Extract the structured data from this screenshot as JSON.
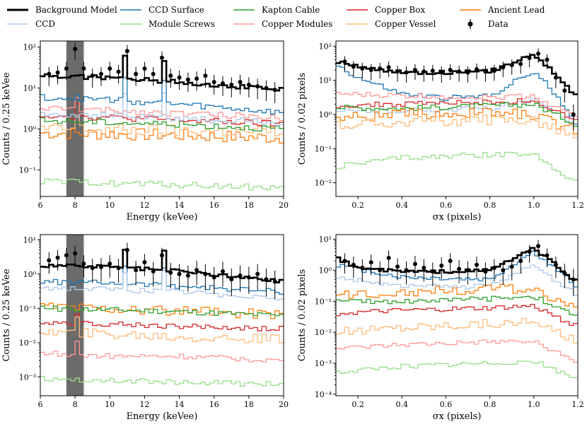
{
  "legend": [
    {
      "key": "bkg",
      "label": "Background Model",
      "color": "#000000",
      "kind": "line-bold"
    },
    {
      "key": "ccd_surface",
      "label": "CCD Surface",
      "color": "#1f77b4",
      "kind": "line"
    },
    {
      "key": "kapton",
      "label": "Kapton Cable",
      "color": "#2ca02c",
      "kind": "line"
    },
    {
      "key": "copper_box",
      "label": "Copper Box",
      "color": "#d62728",
      "kind": "line"
    },
    {
      "key": "ancient_lead",
      "label": "Ancient Lead",
      "color": "#ff7f0e",
      "kind": "line"
    },
    {
      "key": "ccd",
      "label": "CCD",
      "color": "#aec7e8",
      "kind": "line"
    },
    {
      "key": "module_screws",
      "label": "Module Screws",
      "color": "#98df8a",
      "kind": "line"
    },
    {
      "key": "copper_modules",
      "label": "Copper Modules",
      "color": "#ff9896",
      "kind": "line"
    },
    {
      "key": "copper_vessel",
      "label": "Copper Vessel",
      "color": "#ffbb78",
      "kind": "line"
    },
    {
      "key": "data",
      "label": "Data",
      "color": "#000000",
      "kind": "errorbar"
    }
  ],
  "chart_data": [
    {
      "type": "line",
      "id": "energy-top",
      "xlabel": "Energy (keVee)",
      "ylabel": "Counts / 0.25 keVee",
      "xlim": [
        6,
        20
      ],
      "ylim_log10": [
        -1.65,
        2.15
      ],
      "xticks": [
        "6",
        "8",
        "10",
        "12",
        "14",
        "16",
        "18",
        "20"
      ],
      "yticks": [
        "10⁻¹",
        "10⁰",
        "10¹",
        "10²"
      ],
      "shaded_band": [
        7.5,
        8.5
      ],
      "series": [
        {
          "key": "ancient_lead",
          "x": [
            6,
            10,
            14,
            20
          ],
          "values": [
            0.8,
            0.75,
            0.7,
            0.6
          ]
        },
        {
          "key": "copper_vessel",
          "x": [
            6,
            10,
            14,
            20
          ],
          "values": [
            1.0,
            0.95,
            0.9,
            0.85
          ]
        },
        {
          "key": "kapton",
          "x": [
            6,
            10,
            14,
            20
          ],
          "values": [
            1.6,
            1.45,
            1.3,
            1.0
          ]
        },
        {
          "key": "copper_box",
          "x": [
            6,
            10,
            14,
            20
          ],
          "values": [
            2.2,
            1.9,
            1.65,
            1.3
          ]
        },
        {
          "key": "copper_modules",
          "x": [
            6,
            10,
            14,
            20
          ],
          "values": [
            3.2,
            2.8,
            2.4,
            1.9
          ]
        },
        {
          "key": "ccd",
          "x": [
            6,
            10,
            14,
            20
          ],
          "values": [
            2.4,
            2.1,
            1.8,
            1.4
          ]
        },
        {
          "key": "ccd_surface",
          "x": [
            6,
            10,
            14,
            20
          ],
          "values": [
            6.0,
            5.2,
            4.0,
            2.5
          ]
        },
        {
          "key": "module_screws",
          "x": [
            6,
            10,
            14,
            20
          ],
          "values": [
            0.052,
            0.048,
            0.043,
            0.036
          ]
        },
        {
          "key": "bkg",
          "x": [
            6,
            10,
            14,
            20
          ],
          "values": [
            20,
            18,
            14,
            9
          ]
        }
      ],
      "data_points": {
        "x": [
          6.5,
          7.0,
          7.5,
          8.0,
          8.5,
          9.0,
          9.5,
          10.0,
          10.5,
          11.0,
          11.5,
          12.0,
          12.5,
          13.0,
          13.5,
          14.0,
          14.5,
          15.0,
          15.5,
          16.0,
          16.5,
          17.0,
          17.5,
          18.0,
          18.5,
          19.0,
          19.5
        ],
        "y": [
          22,
          24,
          30,
          90,
          30,
          20,
          22,
          30,
          25,
          80,
          22,
          30,
          22,
          55,
          20,
          18,
          16,
          17,
          20,
          14,
          13,
          12,
          14,
          12,
          11,
          10,
          9
        ]
      }
    },
    {
      "type": "line",
      "id": "sigma-top",
      "xlabel": "σx (pixels)",
      "ylabel": "Counts / 0.02 pixels",
      "xlim": [
        0.1,
        1.2
      ],
      "ylim_log10": [
        -2.4,
        2.15
      ],
      "xticks": [
        "0.2",
        "0.4",
        "0.6",
        "0.8",
        "1.0",
        "1.2"
      ],
      "yticks": [
        "10⁻²",
        "10⁻¹",
        "10⁰",
        "10¹",
        "10²"
      ],
      "series": [
        {
          "key": "ccd_surface",
          "x": [
            0.1,
            0.2,
            0.4,
            0.6,
            0.8,
            1.0,
            1.1,
            1.2
          ],
          "values": [
            30,
            12,
            4,
            3,
            3.5,
            18,
            4,
            0.5
          ]
        },
        {
          "key": "ccd",
          "x": [
            0.1,
            0.4,
            0.8,
            1.0,
            1.2
          ],
          "values": [
            1.2,
            1.3,
            1.5,
            2.5,
            0.5
          ]
        },
        {
          "key": "copper_modules",
          "x": [
            0.1,
            0.4,
            0.8,
            1.0,
            1.2
          ],
          "values": [
            4,
            3.5,
            3.2,
            3.5,
            0.8
          ]
        },
        {
          "key": "copper_box",
          "x": [
            0.1,
            0.4,
            0.8,
            1.0,
            1.2
          ],
          "values": [
            1.8,
            2,
            2.3,
            2.5,
            0.6
          ]
        },
        {
          "key": "kapton",
          "x": [
            0.1,
            0.4,
            0.8,
            1.0,
            1.2
          ],
          "values": [
            1.6,
            1.5,
            1.8,
            2.0,
            0.5
          ]
        },
        {
          "key": "ancient_lead",
          "x": [
            0.1,
            0.4,
            0.8,
            1.0,
            1.2
          ],
          "values": [
            0.8,
            1.0,
            1.1,
            1.0,
            0.3
          ]
        },
        {
          "key": "copper_vessel",
          "x": [
            0.1,
            0.4,
            0.8,
            1.0,
            1.2
          ],
          "values": [
            0.5,
            0.6,
            0.7,
            0.7,
            0.2
          ]
        },
        {
          "key": "module_screws",
          "x": [
            0.1,
            0.4,
            0.8,
            1.0,
            1.2
          ],
          "values": [
            0.03,
            0.055,
            0.065,
            0.07,
            0.01
          ]
        },
        {
          "key": "bkg",
          "x": [
            0.1,
            0.2,
            0.4,
            0.6,
            0.8,
            1.0,
            1.1,
            1.2
          ],
          "values": [
            35,
            25,
            17,
            17,
            18,
            60,
            15,
            3
          ]
        }
      ],
      "data_points": {
        "x": [
          0.14,
          0.18,
          0.22,
          0.26,
          0.3,
          0.34,
          0.38,
          0.42,
          0.46,
          0.5,
          0.54,
          0.58,
          0.62,
          0.66,
          0.7,
          0.74,
          0.78,
          0.82,
          0.86,
          0.9,
          0.94,
          0.98,
          1.02,
          1.06,
          1.1,
          1.14,
          1.18
        ],
        "y": [
          35,
          25,
          22,
          20,
          22,
          24,
          18,
          17,
          20,
          18,
          19,
          17,
          20,
          18,
          17,
          21,
          18,
          19,
          24,
          28,
          30,
          45,
          60,
          40,
          12,
          5,
          1
        ]
      }
    },
    {
      "type": "line",
      "id": "energy-bottom",
      "xlabel": "Energy (keVee)",
      "ylabel": "Counts / 0.25 keVee",
      "xlim": [
        6,
        20
      ],
      "ylim_log10": [
        -3.55,
        1.15
      ],
      "xticks": [
        "6",
        "8",
        "10",
        "12",
        "14",
        "16",
        "18",
        "20"
      ],
      "yticks": [
        "10⁻³",
        "10⁻²",
        "10⁻¹",
        "10⁰",
        "10¹"
      ],
      "shaded_band": [
        7.5,
        8.5
      ],
      "series": [
        {
          "key": "ccd_surface",
          "x": [
            6,
            10,
            14,
            20
          ],
          "values": [
            0.6,
            0.55,
            0.45,
            0.3
          ]
        },
        {
          "key": "ccd",
          "x": [
            6,
            10,
            14,
            20
          ],
          "values": [
            0.4,
            0.35,
            0.3,
            0.2
          ]
        },
        {
          "key": "ancient_lead",
          "x": [
            6,
            10,
            14,
            20
          ],
          "values": [
            0.12,
            0.1,
            0.08,
            0.07
          ]
        },
        {
          "key": "kapton",
          "x": [
            6,
            10,
            14,
            20
          ],
          "values": [
            0.1,
            0.09,
            0.08,
            0.06
          ]
        },
        {
          "key": "copper_box",
          "x": [
            6,
            10,
            14,
            20
          ],
          "values": [
            0.04,
            0.035,
            0.03,
            0.025
          ]
        },
        {
          "key": "copper_vessel",
          "x": [
            6,
            10,
            14,
            20
          ],
          "values": [
            0.02,
            0.018,
            0.015,
            0.012
          ]
        },
        {
          "key": "copper_modules",
          "x": [
            6,
            10,
            14,
            20
          ],
          "values": [
            0.005,
            0.004,
            0.004,
            0.003
          ]
        },
        {
          "key": "module_screws",
          "x": [
            6,
            10,
            14,
            20
          ],
          "values": [
            0.0009,
            0.0008,
            0.0007,
            0.0006
          ]
        },
        {
          "key": "bkg",
          "x": [
            6,
            10,
            14,
            20
          ],
          "values": [
            1.8,
            1.6,
            1.2,
            0.6
          ]
        }
      ],
      "data_points": {
        "x": [
          6.5,
          7.0,
          7.5,
          8.0,
          8.5,
          9.0,
          9.5,
          10.0,
          10.5,
          11.0,
          11.5,
          12.0,
          12.5,
          13.0,
          13.5,
          14.0,
          14.5,
          15.0,
          15.5,
          16.0,
          16.5,
          17.0,
          17.5,
          18.0,
          18.5,
          19.0,
          19.5
        ],
        "y": [
          2.5,
          3.0,
          3.5,
          4.0,
          2.0,
          1.5,
          1.6,
          2.0,
          1.5,
          5.0,
          1.3,
          2.2,
          1.2,
          3.5,
          1.1,
          1.0,
          0.9,
          1.3,
          1.0,
          0.8,
          1.2,
          0.7,
          0.9,
          0.8,
          1.0,
          0.7,
          0.6
        ]
      }
    },
    {
      "type": "line",
      "id": "sigma-bottom",
      "xlabel": "σx (pixels)",
      "ylabel": "Counts / 0.02 pixels",
      "xlim": [
        0.1,
        1.2
      ],
      "ylim_log10": [
        -4.05,
        1.15
      ],
      "xticks": [
        "0.2",
        "0.4",
        "0.6",
        "0.8",
        "1.0",
        "1.2"
      ],
      "yticks": [
        "10⁻⁴",
        "10⁻³",
        "10⁻²",
        "10⁻¹",
        "10⁰",
        "10¹"
      ],
      "series": [
        {
          "key": "ccd_surface",
          "x": [
            0.1,
            0.4,
            0.8,
            1.0,
            1.2
          ],
          "values": [
            1.5,
            0.6,
            0.5,
            4,
            0.3
          ]
        },
        {
          "key": "ccd",
          "x": [
            0.1,
            0.4,
            0.8,
            1.0,
            1.2
          ],
          "values": [
            0.6,
            0.3,
            0.3,
            1.5,
            0.15
          ]
        },
        {
          "key": "ancient_lead",
          "x": [
            0.1,
            0.4,
            0.8,
            1.0,
            1.2
          ],
          "values": [
            0.15,
            0.2,
            0.25,
            0.25,
            0.06
          ]
        },
        {
          "key": "kapton",
          "x": [
            0.1,
            0.4,
            0.8,
            1.0,
            1.2
          ],
          "values": [
            0.1,
            0.1,
            0.12,
            0.15,
            0.03
          ]
        },
        {
          "key": "copper_box",
          "x": [
            0.1,
            0.4,
            0.8,
            1.0,
            1.2
          ],
          "values": [
            0.04,
            0.05,
            0.06,
            0.07,
            0.015
          ]
        },
        {
          "key": "copper_vessel",
          "x": [
            0.1,
            0.4,
            0.8,
            1.0,
            1.2
          ],
          "values": [
            0.01,
            0.015,
            0.02,
            0.02,
            0.005
          ]
        },
        {
          "key": "copper_modules",
          "x": [
            0.1,
            0.4,
            0.8,
            1.0,
            1.2
          ],
          "values": [
            0.003,
            0.004,
            0.005,
            0.005,
            0.001
          ]
        },
        {
          "key": "module_screws",
          "x": [
            0.1,
            0.4,
            0.8,
            1.0,
            1.2
          ],
          "values": [
            0.0005,
            0.0008,
            0.001,
            0.0012,
            0.0003
          ]
        },
        {
          "key": "bkg",
          "x": [
            0.1,
            0.2,
            0.4,
            0.6,
            0.8,
            1.0,
            1.1,
            1.2
          ],
          "values": [
            2.5,
            1.2,
            0.9,
            0.9,
            1.0,
            5.0,
            1.5,
            0.4
          ]
        }
      ],
      "data_points": {
        "x": [
          0.14,
          0.18,
          0.22,
          0.26,
          0.3,
          0.34,
          0.38,
          0.42,
          0.46,
          0.5,
          0.54,
          0.58,
          0.62,
          0.66,
          0.7,
          0.74,
          0.78,
          0.82,
          0.86,
          0.9,
          0.94,
          0.98,
          1.02,
          1.06,
          1.1,
          1.14,
          1.18
        ],
        "y": [
          2.0,
          1.5,
          1.2,
          1.8,
          1.0,
          2.5,
          1.3,
          1.0,
          1.6,
          1.2,
          0.9,
          1.4,
          2.0,
          1.1,
          1.0,
          1.5,
          0.9,
          1.2,
          1.0,
          1.3,
          2.0,
          4.0,
          6.0,
          3.0,
          1.5,
          0.8,
          0.5
        ]
      }
    }
  ]
}
